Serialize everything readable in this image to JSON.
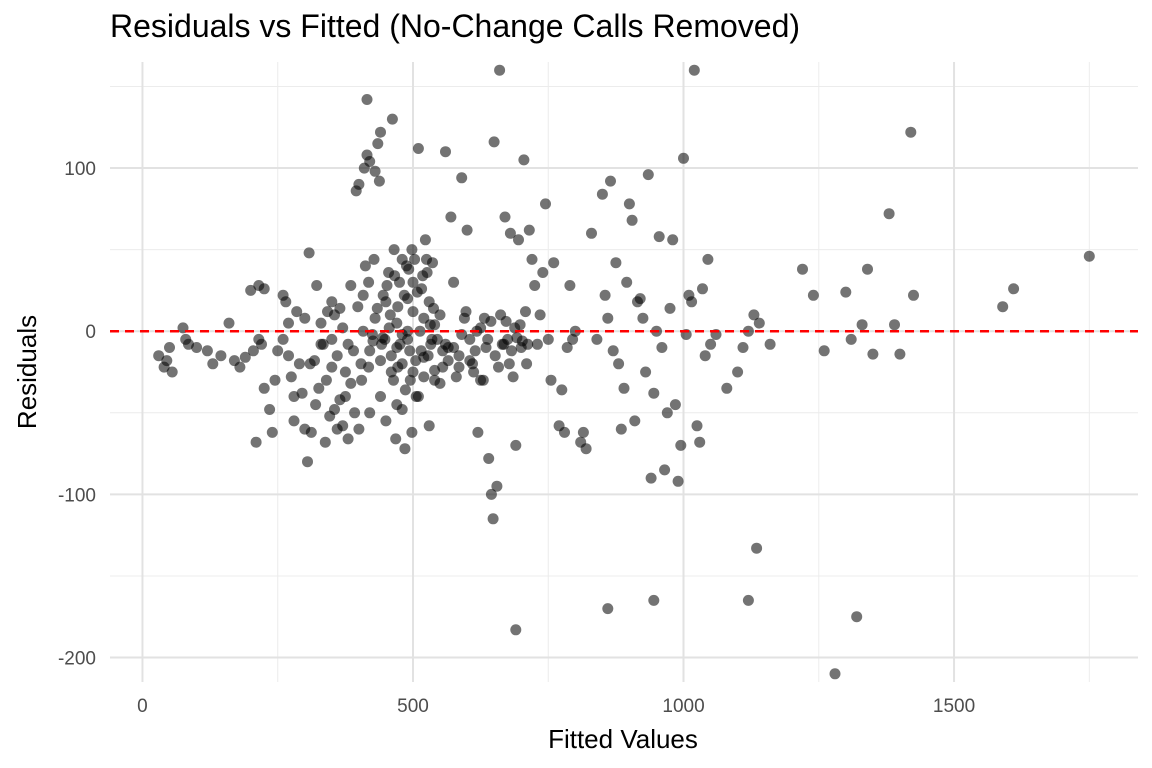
{
  "chart_data": {
    "type": "scatter",
    "title": "Residuals vs Fitted (No-Change Calls Removed)",
    "xlabel": "Fitted Values",
    "ylabel": "Residuals",
    "xlim": [
      -60,
      1840
    ],
    "ylim": [
      -215,
      165
    ],
    "x_major_ticks": [
      0,
      500,
      1000,
      1500
    ],
    "x_minor_ticks": [
      250,
      750,
      1250,
      1750
    ],
    "y_major_ticks": [
      -200,
      -100,
      0,
      100
    ],
    "y_minor_ticks": [
      -150,
      -50,
      50,
      150
    ],
    "x_tick_labels": [
      "0",
      "500",
      "1000",
      "1500"
    ],
    "y_tick_labels": [
      "-200",
      "-100",
      "0",
      "100"
    ],
    "reference_line": {
      "y": 0,
      "style": "dashed",
      "color": "#ff0000"
    },
    "point_color": "#000000",
    "grid": true,
    "legend": "none",
    "series": [
      {
        "points": [
          [
            30,
            -15
          ],
          [
            40,
            -22
          ],
          [
            45,
            -18
          ],
          [
            50,
            -10
          ],
          [
            55,
            -25
          ],
          [
            75,
            2
          ],
          [
            80,
            -5
          ],
          [
            85,
            -8
          ],
          [
            100,
            -10
          ],
          [
            120,
            -12
          ],
          [
            130,
            -20
          ],
          [
            145,
            -15
          ],
          [
            160,
            5
          ],
          [
            170,
            -18
          ],
          [
            180,
            -22
          ],
          [
            190,
            -16
          ],
          [
            200,
            25
          ],
          [
            205,
            -12
          ],
          [
            210,
            -68
          ],
          [
            215,
            28
          ],
          [
            220,
            -8
          ],
          [
            225,
            26
          ],
          [
            240,
            -62
          ],
          [
            245,
            -30
          ],
          [
            260,
            22
          ],
          [
            265,
            18
          ],
          [
            270,
            -15
          ],
          [
            275,
            -28
          ],
          [
            280,
            -55
          ],
          [
            285,
            12
          ],
          [
            295,
            -38
          ],
          [
            300,
            8
          ],
          [
            305,
            -80
          ],
          [
            308,
            48
          ],
          [
            312,
            -62
          ],
          [
            318,
            -18
          ],
          [
            322,
            28
          ],
          [
            326,
            -35
          ],
          [
            330,
            5
          ],
          [
            334,
            -8
          ],
          [
            338,
            -68
          ],
          [
            342,
            12
          ],
          [
            346,
            -52
          ],
          [
            350,
            -22
          ],
          [
            355,
            -48
          ],
          [
            360,
            -60
          ],
          [
            365,
            14
          ],
          [
            370,
            2
          ],
          [
            375,
            -40
          ],
          [
            380,
            -66
          ],
          [
            385,
            28
          ],
          [
            390,
            -12
          ],
          [
            395,
            86
          ],
          [
            400,
            90
          ],
          [
            405,
            -30
          ],
          [
            410,
            100
          ],
          [
            412,
            40
          ],
          [
            415,
            108
          ],
          [
            418,
            -22
          ],
          [
            420,
            104
          ],
          [
            425,
            -2
          ],
          [
            428,
            44
          ],
          [
            430,
            98
          ],
          [
            435,
            115
          ],
          [
            438,
            92
          ],
          [
            440,
            122
          ],
          [
            442,
            -8
          ],
          [
            445,
            22
          ],
          [
            450,
            18
          ],
          [
            455,
            36
          ],
          [
            460,
            -25
          ],
          [
            462,
            130
          ],
          [
            465,
            50
          ],
          [
            468,
            -66
          ],
          [
            470,
            -10
          ],
          [
            475,
            30
          ],
          [
            480,
            -48
          ],
          [
            485,
            -72
          ],
          [
            488,
            40
          ],
          [
            490,
            20
          ],
          [
            495,
            -30
          ],
          [
            498,
            -62
          ],
          [
            500,
            12
          ],
          [
            503,
            44
          ],
          [
            506,
            -40
          ],
          [
            510,
            112
          ],
          [
            513,
            0
          ],
          [
            516,
            26
          ],
          [
            520,
            -16
          ],
          [
            523,
            56
          ],
          [
            526,
            36
          ],
          [
            530,
            -58
          ],
          [
            533,
            -8
          ],
          [
            536,
            42
          ],
          [
            540,
            -24
          ],
          [
            545,
            -5
          ],
          [
            550,
            10
          ],
          [
            555,
            -22
          ],
          [
            560,
            110
          ],
          [
            565,
            -10
          ],
          [
            570,
            70
          ],
          [
            575,
            30
          ],
          [
            580,
            -28
          ],
          [
            585,
            -15
          ],
          [
            590,
            94
          ],
          [
            595,
            8
          ],
          [
            600,
            62
          ],
          [
            605,
            -5
          ],
          [
            610,
            -20
          ],
          [
            615,
            -12
          ],
          [
            620,
            -62
          ],
          [
            625,
            2
          ],
          [
            630,
            -30
          ],
          [
            635,
            -10
          ],
          [
            640,
            -78
          ],
          [
            645,
            -100
          ],
          [
            648,
            -115
          ],
          [
            650,
            116
          ],
          [
            655,
            -95
          ],
          [
            660,
            160
          ],
          [
            665,
            -8
          ],
          [
            670,
            70
          ],
          [
            675,
            -5
          ],
          [
            680,
            60
          ],
          [
            685,
            -28
          ],
          [
            690,
            -70
          ],
          [
            695,
            56
          ],
          [
            700,
            -10
          ],
          [
            705,
            105
          ],
          [
            710,
            -20
          ],
          [
            715,
            62
          ],
          [
            720,
            44
          ],
          [
            725,
            28
          ],
          [
            730,
            -8
          ],
          [
            735,
            10
          ],
          [
            740,
            36
          ],
          [
            745,
            78
          ],
          [
            750,
            -5
          ],
          [
            755,
            -30
          ],
          [
            760,
            42
          ],
          [
            770,
            -58
          ],
          [
            775,
            -36
          ],
          [
            780,
            -62
          ],
          [
            785,
            -10
          ],
          [
            790,
            28
          ],
          [
            795,
            -5
          ],
          [
            800,
            0
          ],
          [
            810,
            -68
          ],
          [
            815,
            -62
          ],
          [
            820,
            -72
          ],
          [
            830,
            60
          ],
          [
            840,
            -5
          ],
          [
            850,
            84
          ],
          [
            855,
            22
          ],
          [
            860,
            8
          ],
          [
            865,
            92
          ],
          [
            870,
            -12
          ],
          [
            875,
            42
          ],
          [
            880,
            -20
          ],
          [
            885,
            -60
          ],
          [
            890,
            -35
          ],
          [
            895,
            30
          ],
          [
            900,
            78
          ],
          [
            905,
            68
          ],
          [
            910,
            -55
          ],
          [
            915,
            18
          ],
          [
            920,
            20
          ],
          [
            925,
            8
          ],
          [
            930,
            -25
          ],
          [
            935,
            96
          ],
          [
            940,
            -90
          ],
          [
            945,
            -38
          ],
          [
            950,
            0
          ],
          [
            955,
            58
          ],
          [
            960,
            -10
          ],
          [
            965,
            -85
          ],
          [
            970,
            -50
          ],
          [
            975,
            14
          ],
          [
            980,
            56
          ],
          [
            985,
            -45
          ],
          [
            990,
            -92
          ],
          [
            995,
            -70
          ],
          [
            1000,
            106
          ],
          [
            1005,
            -2
          ],
          [
            1010,
            22
          ],
          [
            1015,
            18
          ],
          [
            1020,
            160
          ],
          [
            1025,
            -58
          ],
          [
            1030,
            -68
          ],
          [
            1035,
            26
          ],
          [
            1040,
            -15
          ],
          [
            1045,
            44
          ],
          [
            1050,
            -8
          ],
          [
            1060,
            -2
          ],
          [
            1080,
            -35
          ],
          [
            1100,
            -25
          ],
          [
            1110,
            -10
          ],
          [
            1120,
            0
          ],
          [
            1130,
            10
          ],
          [
            1140,
            5
          ],
          [
            1160,
            -8
          ],
          [
            1220,
            38
          ],
          [
            1240,
            22
          ],
          [
            1260,
            -12
          ],
          [
            1280,
            -210
          ],
          [
            1300,
            24
          ],
          [
            1310,
            -5
          ],
          [
            1320,
            -175
          ],
          [
            1330,
            4
          ],
          [
            1340,
            38
          ],
          [
            1350,
            -14
          ],
          [
            1380,
            72
          ],
          [
            1390,
            4
          ],
          [
            1400,
            -14
          ],
          [
            1420,
            122
          ],
          [
            1425,
            22
          ],
          [
            1590,
            15
          ],
          [
            1610,
            26
          ],
          [
            1750,
            46
          ],
          [
            860,
            -170
          ],
          [
            945,
            -165
          ],
          [
            1120,
            -165
          ],
          [
            1135,
            -133
          ],
          [
            690,
            -183
          ],
          [
            415,
            142
          ],
          [
            555,
            -12
          ],
          [
            565,
            -18
          ],
          [
            575,
            -10
          ],
          [
            585,
            -22
          ],
          [
            590,
            -2
          ],
          [
            598,
            12
          ],
          [
            605,
            -18
          ],
          [
            612,
            -25
          ],
          [
            618,
            0
          ],
          [
            625,
            -30
          ],
          [
            632,
            8
          ],
          [
            638,
            -5
          ],
          [
            644,
            6
          ],
          [
            652,
            -15
          ],
          [
            658,
            -22
          ],
          [
            662,
            10
          ],
          [
            668,
            -8
          ],
          [
            672,
            6
          ],
          [
            678,
            -20
          ],
          [
            682,
            -12
          ],
          [
            688,
            2
          ],
          [
            692,
            -4
          ],
          [
            698,
            4
          ],
          [
            702,
            -6
          ],
          [
            708,
            12
          ],
          [
            712,
            -8
          ],
          [
            350,
            -5
          ],
          [
            355,
            10
          ],
          [
            360,
            -15
          ],
          [
            365,
            -42
          ],
          [
            370,
            -58
          ],
          [
            375,
            -25
          ],
          [
            380,
            -8
          ],
          [
            385,
            -32
          ],
          [
            392,
            -50
          ],
          [
            398,
            15
          ],
          [
            404,
            -20
          ],
          [
            408,
            0
          ],
          [
            420,
            -12
          ],
          [
            430,
            8
          ],
          [
            440,
            -18
          ],
          [
            448,
            -5
          ],
          [
            456,
            2
          ],
          [
            464,
            -30
          ],
          [
            472,
            15
          ],
          [
            480,
            -2
          ],
          [
            490,
            -5
          ],
          [
            500,
            30
          ],
          [
            505,
            -18
          ],
          [
            515,
            -12
          ],
          [
            520,
            8
          ],
          [
            530,
            18
          ],
          [
            540,
            4
          ],
          [
            550,
            -32
          ],
          [
            560,
            -8
          ],
          [
            300,
            -60
          ],
          [
            310,
            -20
          ],
          [
            320,
            -45
          ],
          [
            330,
            -8
          ],
          [
            340,
            -30
          ],
          [
            350,
            18
          ],
          [
            260,
            -5
          ],
          [
            270,
            5
          ],
          [
            280,
            -40
          ],
          [
            290,
            -20
          ],
          [
            250,
            -12
          ],
          [
            235,
            -48
          ],
          [
            225,
            -35
          ],
          [
            215,
            -5
          ],
          [
            440,
            -40
          ],
          [
            450,
            -55
          ],
          [
            460,
            -15
          ],
          [
            470,
            -45
          ],
          [
            480,
            -20
          ],
          [
            490,
            0
          ],
          [
            500,
            -25
          ],
          [
            510,
            -40
          ],
          [
            520,
            -28
          ],
          [
            528,
            -15
          ],
          [
            535,
            -5
          ],
          [
            540,
            -30
          ],
          [
            470,
            5
          ],
          [
            476,
            -8
          ],
          [
            484,
            22
          ],
          [
            492,
            38
          ],
          [
            498,
            50
          ],
          [
            508,
            24
          ],
          [
            518,
            34
          ],
          [
            525,
            44
          ],
          [
            532,
            4
          ],
          [
            538,
            14
          ],
          [
            408,
            22
          ],
          [
            418,
            30
          ],
          [
            426,
            -6
          ],
          [
            434,
            14
          ],
          [
            444,
            -4
          ],
          [
            452,
            28
          ],
          [
            458,
            10
          ],
          [
            466,
            34
          ],
          [
            472,
            -22
          ],
          [
            480,
            44
          ],
          [
            486,
            -36
          ],
          [
            494,
            -12
          ],
          [
            400,
            -60
          ],
          [
            420,
            -50
          ]
        ]
      }
    ]
  }
}
